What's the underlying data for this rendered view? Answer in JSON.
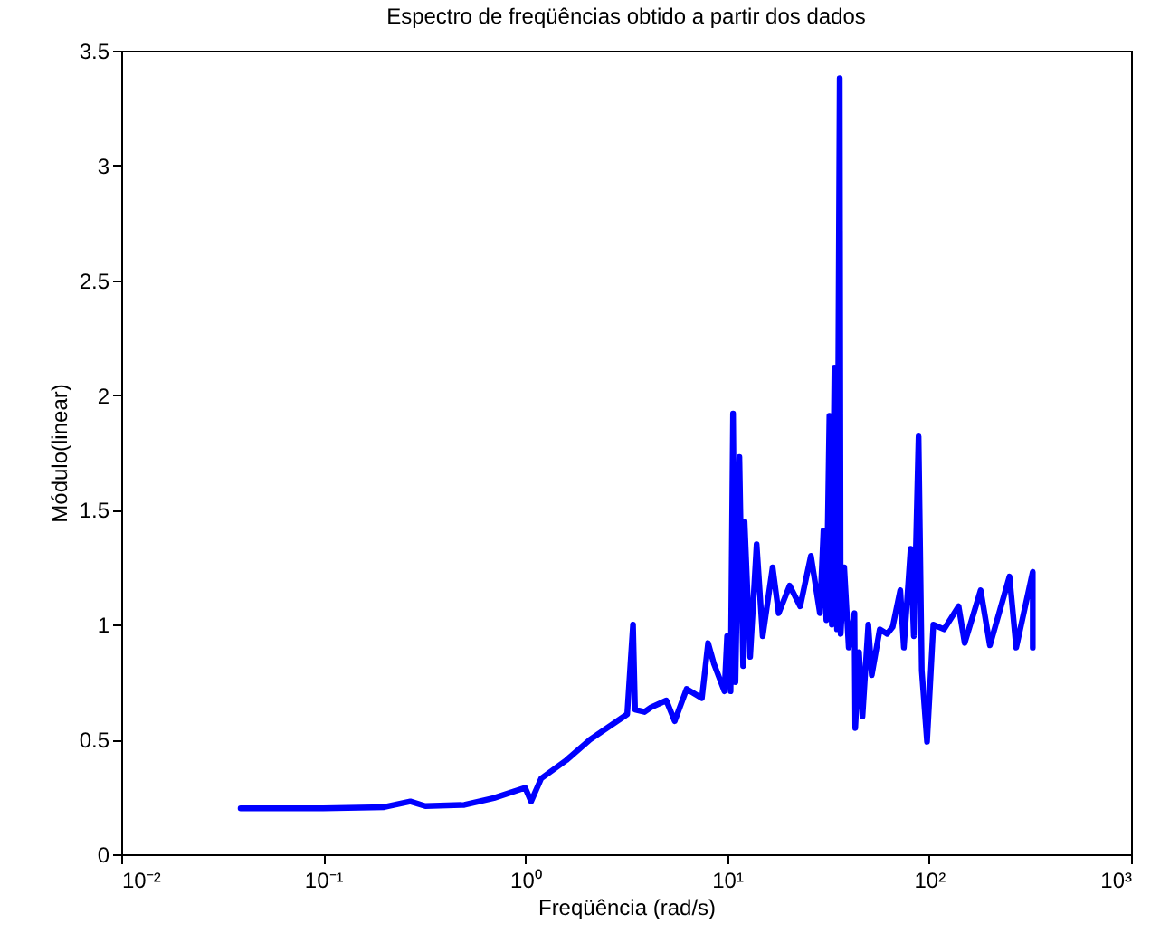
{
  "chart_data": {
    "type": "line",
    "title": "Espectro de freqüências obtido a partir dos dados",
    "xlabel": "Freqüência (rad/s)",
    "ylabel": "Módulo(linear)",
    "log": "x",
    "grid": false,
    "legend": false,
    "marker": "none",
    "line_style": "solid",
    "xlim": [
      0.01,
      1000
    ],
    "xticks": [
      {
        "value": 0.01,
        "label": "10⁻²"
      },
      {
        "value": 0.1,
        "label": "10⁻¹"
      },
      {
        "value": 1,
        "label": "10⁰"
      },
      {
        "value": 10,
        "label": "10¹"
      },
      {
        "value": 100,
        "label": "10²"
      },
      {
        "value": 1000,
        "label": "10³"
      }
    ],
    "ylim": [
      0,
      3.5
    ],
    "yticks": [
      0,
      0.5,
      1,
      1.5,
      2,
      2.5,
      3,
      3.5
    ],
    "x": [
      0.039,
      0.1,
      0.2,
      0.27,
      0.32,
      0.5,
      0.7,
      1.0,
      1.07,
      1.2,
      1.6,
      2.1,
      3.2,
      3.42,
      3.5,
      3.9,
      4.2,
      5.0,
      5.5,
      6.3,
      7.5,
      8.05,
      8.6,
      9.7,
      10.0,
      10.4,
      10.7,
      11.0,
      11.5,
      12.0,
      12.2,
      13,
      14,
      15,
      16.8,
      18,
      20.4,
      23,
      26,
      28.8,
      30,
      31,
      32.1,
      33,
      34,
      35,
      36.1,
      36.5,
      38,
      40,
      42.7,
      43.1,
      45,
      46.8,
      50,
      52,
      57,
      62,
      66,
      72,
      75,
      81,
      84,
      88.7,
      92,
      97.7,
      105,
      118.6,
      140,
      150,
      180,
      200,
      250,
      270,
      326,
      326
    ],
    "series": [
      {
        "color": "#0000ff",
        "values": [
          0.2,
          0.2,
          0.205,
          0.23,
          0.21,
          0.215,
          0.245,
          0.29,
          0.23,
          0.33,
          0.41,
          0.5,
          0.61,
          1.0,
          0.63,
          0.62,
          0.64,
          0.67,
          0.58,
          0.72,
          0.68,
          0.92,
          0.83,
          0.71,
          0.95,
          0.71,
          1.92,
          0.75,
          1.73,
          0.82,
          1.45,
          0.86,
          1.35,
          0.95,
          1.25,
          1.05,
          1.17,
          1.08,
          1.3,
          1.05,
          1.41,
          1.02,
          1.91,
          1.0,
          2.12,
          0.98,
          3.38,
          0.96,
          1.25,
          0.9,
          1.05,
          0.55,
          0.88,
          0.6,
          1.0,
          0.78,
          0.98,
          0.96,
          0.99,
          1.15,
          0.9,
          1.33,
          0.95,
          1.82,
          0.8,
          0.49,
          1.0,
          0.98,
          1.08,
          0.92,
          1.15,
          0.91,
          1.21,
          0.9,
          1.23,
          0.9
        ]
      }
    ]
  }
}
